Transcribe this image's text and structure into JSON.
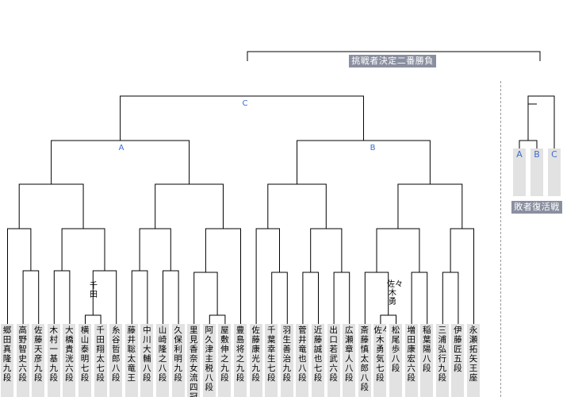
{
  "players": [
    "郷田真隆九段",
    "高野智史六段",
    "佐藤天彦九段",
    "木村一基九段",
    "大橋貴洸六段",
    "横山泰明七段",
    "千田翔太七段",
    "糸谷哲郎八段",
    "藤井聡太竜王",
    "中川大輔八段",
    "山崎隆之八段",
    "久保利明九段",
    "里見香奈女流四冠",
    "阿久津主税八段",
    "屋敷伸之九段",
    "豊島将之九段",
    "佐藤康光九段",
    "千葉幸生七段",
    "羽生善治九段",
    "菅井竜也八段",
    "近藤誠也七段",
    "出口若武六段",
    "広瀬章人八段",
    "斎藤慎太郎八段",
    "佐々木勇気七段",
    "松尾　歩八段",
    "増田康宏六段",
    "稲葉　陽八段",
    "三浦弘行九段",
    "伊藤　匠五段",
    "永瀬拓矢王座"
  ],
  "notes": {
    "senda": "千田",
    "sasaki": "佐々木勇"
  },
  "labels": {
    "a": "A",
    "b": "B",
    "c": "C"
  },
  "side": {
    "a": "A",
    "b": "B",
    "c": "C"
  },
  "banners": {
    "final": "挑戦者決定二番勝負",
    "losers": "敗者復活戦"
  },
  "colors": {
    "label": "#3a6ad4",
    "banner_bg": "#8a8fa0",
    "name_box": "#e2e2e2"
  }
}
